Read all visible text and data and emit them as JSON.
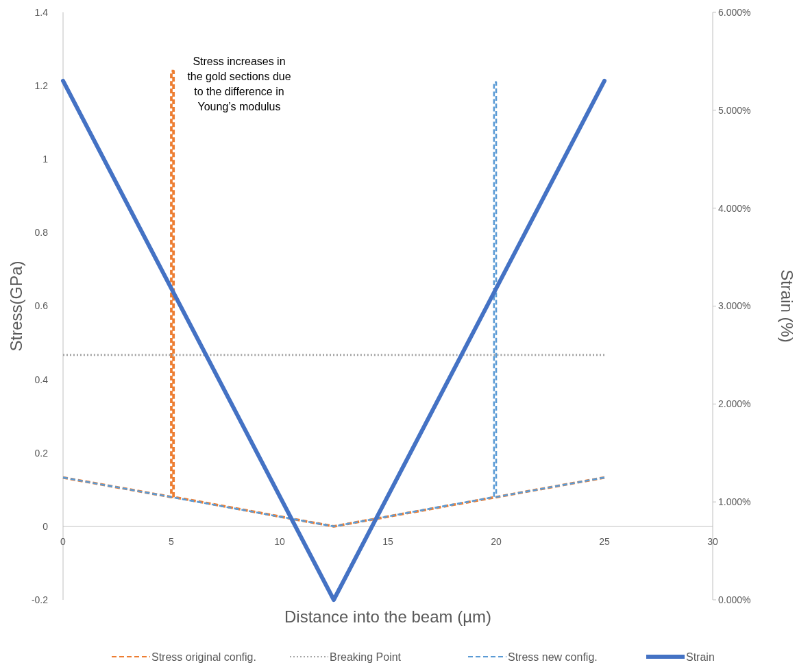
{
  "chart_data": {
    "type": "line",
    "xlabel": "Distance into the beam (µm)",
    "ylabel": "Stress(GPa)",
    "y2label": "Strain (%)",
    "xlim": [
      0,
      30
    ],
    "xticks": [
      0,
      5,
      10,
      15,
      20,
      25,
      30
    ],
    "ylim": [
      -0.2,
      1.4
    ],
    "yticks": [
      {
        "value": -0.2,
        "label": "-0.2"
      },
      {
        "value": 0,
        "label": "0"
      },
      {
        "value": 0.2,
        "label": "0.2"
      },
      {
        "value": 0.4,
        "label": "0.4"
      },
      {
        "value": 0.6,
        "label": "0.6"
      },
      {
        "value": 0.8,
        "label": "0.8"
      },
      {
        "value": 1,
        "label": "1"
      },
      {
        "value": 1.2,
        "label": "1.2"
      },
      {
        "value": 1.4,
        "label": "1.4"
      }
    ],
    "y2lim": [
      0,
      6
    ],
    "y2ticks": [
      {
        "value": 0,
        "label": "0.000%"
      },
      {
        "value": 1,
        "label": "1.000%"
      },
      {
        "value": 2,
        "label": "2.000%"
      },
      {
        "value": 3,
        "label": "3.000%"
      },
      {
        "value": 4,
        "label": "4.000%"
      },
      {
        "value": 5,
        "label": "5.000%"
      },
      {
        "value": 6,
        "label": "6.000%"
      }
    ],
    "grid": false,
    "legend": "bottom",
    "marker": "none",
    "annotations": [
      "Stress increases in the gold sections due to the difference in Young’s modulus"
    ],
    "series": [
      {
        "name": "Stress original config.",
        "color": "#ed7d31",
        "line_style": "dashed",
        "x": [
          0,
          5,
          5,
          5.1,
          5.1,
          12.5,
          25
        ],
        "values": [
          0.133,
          0.08,
          1.24,
          1.24,
          0.08,
          0,
          0.133
        ]
      },
      {
        "name": "Breaking Point",
        "color": "#a5a5a5",
        "line_style": "dotted",
        "x": [
          0,
          25
        ],
        "values": [
          0.467,
          0.467
        ]
      },
      {
        "name": "Stress new config.",
        "color": "#5b9bd5",
        "line_style": "dashed",
        "x": [
          0,
          12.5,
          19.9,
          19.9,
          20,
          20,
          25
        ],
        "values": [
          0.133,
          0,
          0.08,
          1.21,
          1.21,
          0.08,
          0.133
        ]
      },
      {
        "name": "Strain",
        "color": "#4472c4",
        "line_style": "solid",
        "axis": "y2",
        "x": [
          0,
          12.5,
          25
        ],
        "values": [
          5.3,
          0,
          5.3
        ]
      }
    ]
  }
}
